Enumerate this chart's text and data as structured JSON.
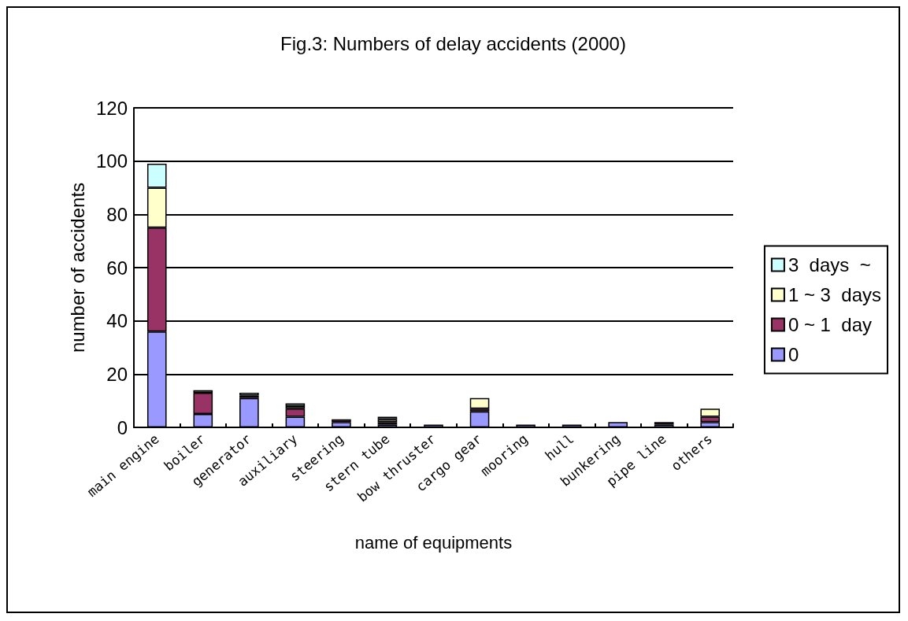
{
  "chart_data": {
    "type": "bar",
    "title": "Fig.3: Numbers of delay accidents (2000)",
    "xlabel": "name of equipments",
    "ylabel": "number of accidents",
    "categories": [
      "main engine",
      "boiler",
      "generator",
      "auxiliary",
      "steering",
      "stern tube",
      "bow thruster",
      "cargo gear",
      "mooring",
      "hull",
      "bunkering",
      "pipe line",
      "others"
    ],
    "stacked": true,
    "series": [
      {
        "name": "0",
        "color": "#9999ff",
        "values": [
          36,
          5,
          11,
          4,
          2,
          1,
          1,
          6,
          1,
          1,
          2,
          1,
          2
        ]
      },
      {
        "name": "0 ~ 1  day",
        "color": "#993366",
        "values": [
          39,
          8,
          1,
          3,
          1,
          1,
          0,
          1,
          0,
          0,
          0,
          1,
          2
        ]
      },
      {
        "name": "1 ~ 3  days",
        "color": "#ffffcc",
        "values": [
          15,
          1,
          0,
          1,
          0,
          1,
          0,
          4,
          0,
          0,
          0,
          0,
          3
        ]
      },
      {
        "name": "3  days  ~",
        "color": "#ccffff",
        "values": [
          9,
          0,
          1,
          1,
          0,
          1,
          0,
          0,
          0,
          0,
          0,
          0,
          0
        ]
      }
    ],
    "ylim": [
      0,
      120
    ],
    "yticks": [
      0,
      20,
      40,
      60,
      80,
      100,
      120
    ],
    "grid": "y",
    "legend": "right"
  }
}
